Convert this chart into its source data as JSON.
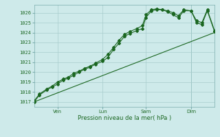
{
  "xlabel": "Pression niveau de la mer( hPa )",
  "bg_color": "#ceeaea",
  "grid_color": "#a8cccc",
  "line_color": "#1a6620",
  "spine_color": "#7aacac",
  "ylim": [
    1016.5,
    1026.8
  ],
  "xlim": [
    0,
    100
  ],
  "yticks": [
    1017,
    1018,
    1019,
    1020,
    1021,
    1022,
    1023,
    1024,
    1025,
    1026
  ],
  "xtick_positions": [
    13,
    38,
    62,
    87
  ],
  "xtick_labels": [
    "Ven",
    "Lun",
    "Sam",
    "Dim"
  ],
  "vline_x": 87,
  "series1_x": [
    0,
    3,
    7,
    10,
    13,
    16,
    19,
    22,
    25,
    28,
    31,
    34,
    38,
    41,
    44,
    47,
    50,
    53,
    57,
    60,
    62,
    65,
    68,
    71,
    74,
    77,
    80,
    83,
    87,
    90,
    93,
    96,
    100
  ],
  "series1_y": [
    1017.0,
    1017.7,
    1018.2,
    1018.5,
    1018.8,
    1019.2,
    1019.4,
    1019.7,
    1020.0,
    1020.3,
    1020.5,
    1020.8,
    1021.1,
    1021.5,
    1022.3,
    1022.9,
    1023.6,
    1023.9,
    1024.2,
    1024.4,
    1025.5,
    1026.2,
    1026.3,
    1026.3,
    1026.1,
    1025.8,
    1025.5,
    1026.2,
    1026.2,
    1025.0,
    1024.8,
    1026.2,
    1024.1
  ],
  "series2_x": [
    0,
    3,
    7,
    10,
    13,
    16,
    19,
    22,
    25,
    28,
    31,
    34,
    38,
    41,
    44,
    47,
    50,
    53,
    57,
    60,
    62,
    65,
    68,
    71,
    74,
    77,
    80,
    83,
    87,
    90,
    93,
    96,
    100
  ],
  "series2_y": [
    1017.1,
    1017.8,
    1018.3,
    1018.6,
    1019.0,
    1019.3,
    1019.5,
    1019.9,
    1020.1,
    1020.4,
    1020.6,
    1020.9,
    1021.3,
    1021.8,
    1022.5,
    1023.2,
    1023.8,
    1024.1,
    1024.4,
    1024.7,
    1025.8,
    1026.3,
    1026.4,
    1026.3,
    1026.2,
    1026.0,
    1025.7,
    1026.3,
    1026.2,
    1025.2,
    1025.0,
    1026.3,
    1024.2
  ],
  "series3_x": [
    0,
    100
  ],
  "series3_y": [
    1017.0,
    1024.0
  ],
  "marker_style": "D",
  "marker_size": 2.0,
  "line_width": 0.8
}
